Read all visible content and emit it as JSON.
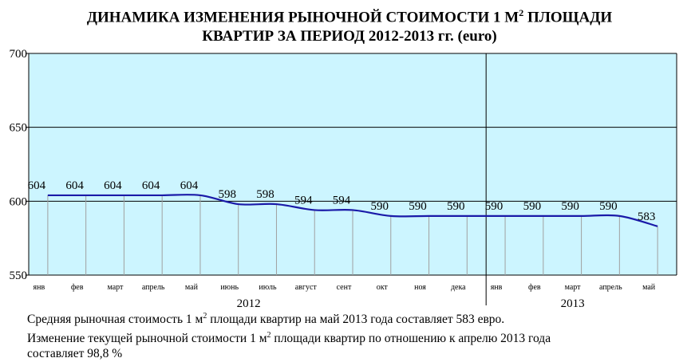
{
  "title": {
    "line1": "ДИНАМИКА ИЗМЕНЕНИЯ РЫНОЧНОЙ СТОИМОСТИ 1 М",
    "line1_sup": "2",
    "line1_end": " ПЛОЩАДИ",
    "line2": "КВАРТИР ЗА ПЕРИОД 2012-2013 гг. (euro)"
  },
  "chart_data": {
    "type": "line",
    "categories": [
      "янв",
      "фев",
      "март",
      "апрель",
      "май",
      "июнь",
      "июль",
      "август",
      "сент",
      "окт",
      "ноя",
      "дека",
      "янв",
      "фев",
      "март",
      "апрель",
      "май"
    ],
    "series": [
      {
        "values": [
          604,
          604,
          604,
          604,
          604,
          598,
          598,
          594,
          594,
          590,
          590,
          590,
          590,
          590,
          590,
          590,
          583
        ]
      }
    ],
    "data_labels": [
      "604",
      "604",
      "604",
      "604",
      "604",
      "598",
      "598",
      "594",
      "594",
      "590",
      "590",
      "590",
      "590",
      "590",
      "590",
      "590",
      "583"
    ],
    "years": [
      {
        "label": "2012",
        "from": 0,
        "to": 11
      },
      {
        "label": "2013",
        "from": 12,
        "to": 16
      }
    ],
    "ylim": [
      550,
      700
    ],
    "yticks": [
      "700",
      "650",
      "600",
      "550"
    ],
    "grid": true,
    "colors": {
      "plot_bg": "#ccf5ff",
      "line": "#1a1aa8",
      "grid": "#000000",
      "drop": "#a0a0a0"
    }
  },
  "footer": {
    "line1": "Средняя рыночная стоимость 1 м",
    "line1_sup": "2",
    "line1_end": " площади квартир на май 2013 года составляет 583 евро.",
    "line2": "Изменение текущей рыночной стоимости 1 м",
    "line2_sup": "2",
    "line2_end": " площади квартир по отношению к апрелю 2013 года",
    "line3": "составляет 98,8  %"
  }
}
